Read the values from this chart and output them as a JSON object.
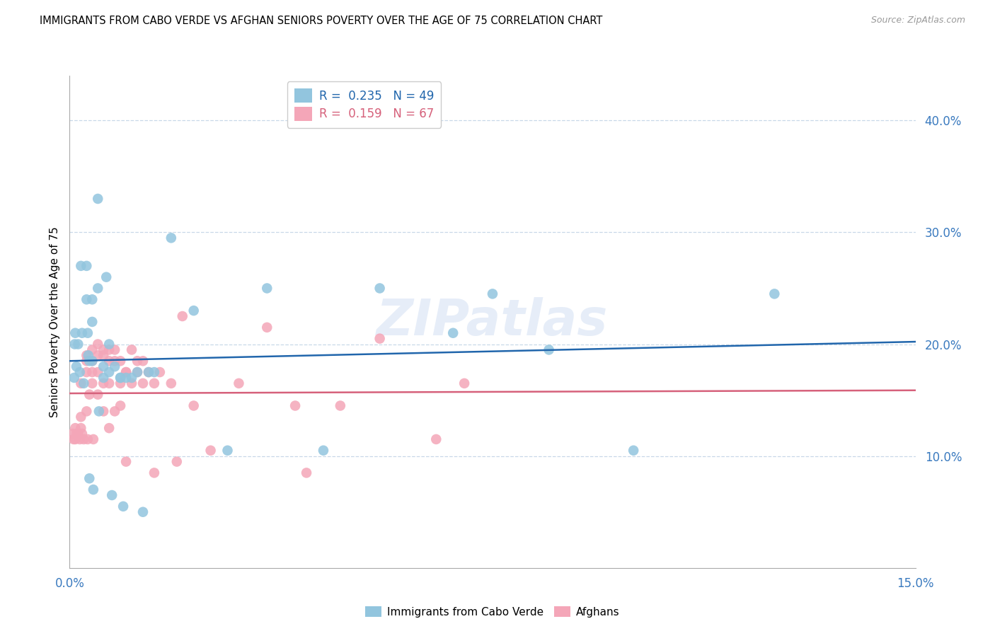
{
  "title": "IMMIGRANTS FROM CABO VERDE VS AFGHAN SENIORS POVERTY OVER THE AGE OF 75 CORRELATION CHART",
  "source": "Source: ZipAtlas.com",
  "ylabel": "Seniors Poverty Over the Age of 75",
  "y_ticks": [
    0.1,
    0.2,
    0.3,
    0.4
  ],
  "y_tick_labels": [
    "10.0%",
    "20.0%",
    "30.0%",
    "40.0%"
  ],
  "x_range": [
    0.0,
    0.15
  ],
  "y_range": [
    0.0,
    0.44
  ],
  "cabo_verde_color": "#92c5de",
  "afghans_color": "#f4a6b8",
  "cabo_verde_line_color": "#2166ac",
  "afghans_line_color": "#d6617b",
  "watermark": "ZIPatlas",
  "cabo_verde_label": "Immigrants from Cabo Verde",
  "afghans_label": "Afghans",
  "cabo_verde_R": 0.235,
  "afghans_R": 0.159,
  "cabo_verde_N": 49,
  "afghans_N": 67,
  "cabo_verde_x": [
    0.0008,
    0.0009,
    0.001,
    0.0012,
    0.0015,
    0.0018,
    0.002,
    0.0022,
    0.0025,
    0.003,
    0.003,
    0.0032,
    0.0033,
    0.0035,
    0.0035,
    0.004,
    0.004,
    0.004,
    0.0042,
    0.005,
    0.005,
    0.0052,
    0.006,
    0.006,
    0.0065,
    0.007,
    0.007,
    0.0075,
    0.008,
    0.009,
    0.009,
    0.0095,
    0.01,
    0.011,
    0.012,
    0.013,
    0.014,
    0.015,
    0.018,
    0.022,
    0.028,
    0.035,
    0.045,
    0.055,
    0.068,
    0.075,
    0.085,
    0.1,
    0.125
  ],
  "cabo_verde_y": [
    0.17,
    0.2,
    0.21,
    0.18,
    0.2,
    0.175,
    0.27,
    0.21,
    0.165,
    0.27,
    0.24,
    0.21,
    0.19,
    0.185,
    0.08,
    0.24,
    0.22,
    0.185,
    0.07,
    0.33,
    0.25,
    0.14,
    0.18,
    0.17,
    0.26,
    0.2,
    0.175,
    0.065,
    0.18,
    0.17,
    0.17,
    0.055,
    0.17,
    0.17,
    0.175,
    0.05,
    0.175,
    0.175,
    0.295,
    0.23,
    0.105,
    0.25,
    0.105,
    0.25,
    0.21,
    0.245,
    0.195,
    0.105,
    0.245
  ],
  "afghans_x": [
    0.0005,
    0.0007,
    0.001,
    0.001,
    0.0012,
    0.0015,
    0.0018,
    0.002,
    0.002,
    0.002,
    0.0022,
    0.0025,
    0.003,
    0.003,
    0.003,
    0.003,
    0.0032,
    0.0035,
    0.004,
    0.004,
    0.004,
    0.004,
    0.0042,
    0.005,
    0.005,
    0.005,
    0.005,
    0.006,
    0.006,
    0.006,
    0.006,
    0.007,
    0.007,
    0.007,
    0.007,
    0.008,
    0.008,
    0.008,
    0.009,
    0.009,
    0.009,
    0.01,
    0.01,
    0.01,
    0.011,
    0.011,
    0.012,
    0.012,
    0.013,
    0.013,
    0.014,
    0.015,
    0.015,
    0.016,
    0.018,
    0.019,
    0.02,
    0.022,
    0.025,
    0.03,
    0.035,
    0.04,
    0.042,
    0.048,
    0.055,
    0.065,
    0.07
  ],
  "afghans_y": [
    0.12,
    0.115,
    0.125,
    0.115,
    0.12,
    0.12,
    0.115,
    0.165,
    0.135,
    0.125,
    0.12,
    0.115,
    0.19,
    0.185,
    0.175,
    0.14,
    0.115,
    0.155,
    0.195,
    0.185,
    0.175,
    0.165,
    0.115,
    0.2,
    0.19,
    0.175,
    0.155,
    0.195,
    0.19,
    0.165,
    0.14,
    0.195,
    0.185,
    0.165,
    0.125,
    0.195,
    0.185,
    0.14,
    0.185,
    0.165,
    0.145,
    0.175,
    0.175,
    0.095,
    0.195,
    0.165,
    0.185,
    0.175,
    0.185,
    0.165,
    0.175,
    0.165,
    0.085,
    0.175,
    0.165,
    0.095,
    0.225,
    0.145,
    0.105,
    0.165,
    0.215,
    0.145,
    0.085,
    0.145,
    0.205,
    0.115,
    0.165
  ]
}
